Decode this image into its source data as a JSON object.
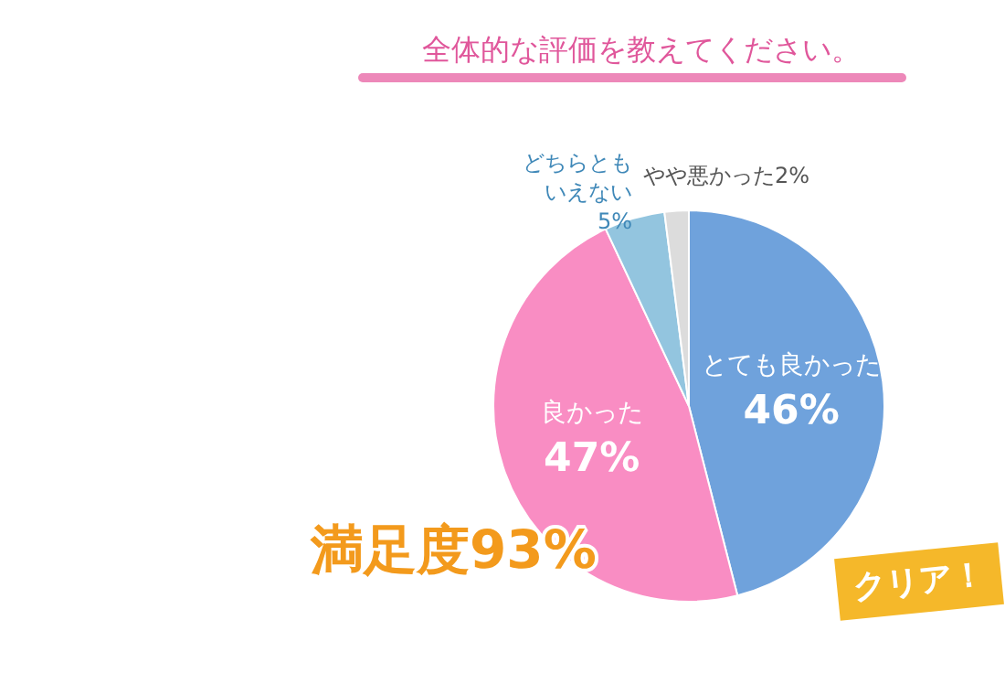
{
  "chart_data": {
    "type": "pie",
    "title": "全体的な評価を教えてください。",
    "categories": [
      "とても良かった",
      "良かった",
      "どちらともいえない",
      "やや悪かった"
    ],
    "values": [
      46,
      47,
      5,
      2
    ],
    "colors": [
      "#6fa2dc",
      "#f98dc3",
      "#93c5df",
      "#dcdcdc"
    ],
    "value_labels": [
      "46%",
      "47%",
      "5%",
      "2%"
    ],
    "legend": false,
    "annotations": [
      "満足度93%",
      "クリア！"
    ]
  }
}
